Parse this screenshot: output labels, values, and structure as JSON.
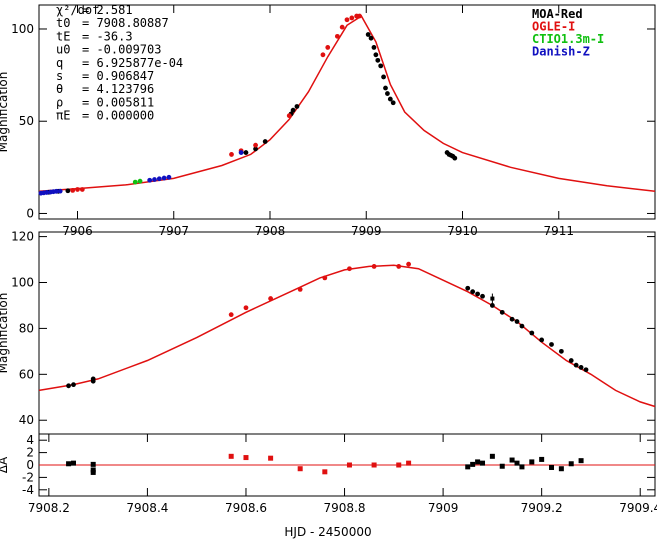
{
  "colors": {
    "model": "#e01010",
    "moa": "#000000",
    "ogle": "#e01010",
    "ctio": "#10c010",
    "danish": "#1010c0"
  },
  "params": [
    {
      "label": "χ²/dof",
      "value": "= 2.581"
    },
    {
      "label": "t0",
      "value": "= 7908.80887"
    },
    {
      "label": "tE",
      "value": "=   -36.3"
    },
    {
      "label": "u0",
      "value": "= -0.009703"
    },
    {
      "label": "q",
      "value": "= 6.925877e-04"
    },
    {
      "label": "s",
      "value": "= 0.906847"
    },
    {
      "label": "θ",
      "value": "= 4.123796"
    },
    {
      "label": "ρ",
      "value": "= 0.005811"
    },
    {
      "label": "πE",
      "value": "= 0.000000"
    }
  ],
  "legend": [
    {
      "label": "MOA-Red",
      "color": "#000000"
    },
    {
      "label": "OGLE-I",
      "color": "#e01010"
    },
    {
      "label": "CTIO1.3m-I",
      "color": "#10c010"
    },
    {
      "label": "Danish-Z",
      "color": "#1010c0"
    }
  ],
  "xlabel": "HJD - 2450000",
  "chart_data": [
    {
      "type": "scatter",
      "panel": "top",
      "ylabel": "Magnification",
      "xlim": [
        7905.6,
        7912.0
      ],
      "ylim": [
        -3,
        113
      ],
      "xticks": [
        7906,
        7907,
        7908,
        7909,
        7910,
        7911
      ],
      "yticks": [
        0,
        50,
        100
      ],
      "model": {
        "x": [
          7905.6,
          7906.0,
          7906.5,
          7907.0,
          7907.5,
          7907.8,
          7908.0,
          7908.2,
          7908.4,
          7908.6,
          7908.8,
          7908.95,
          7909.1,
          7909.25,
          7909.4,
          7909.6,
          7909.8,
          7910.0,
          7910.5,
          7911.0,
          7911.5,
          7912.0
        ],
        "y": [
          12,
          13.5,
          15.5,
          19,
          26,
          32,
          40,
          51,
          66,
          85,
          102,
          107,
          93,
          70,
          55,
          45,
          38,
          33,
          25,
          19,
          15,
          12
        ]
      },
      "series": [
        {
          "name": "MOA-Red",
          "x": [
            7905.7,
            7905.8,
            7905.9,
            7907.75,
            7907.85,
            7907.95,
            7908.22,
            7908.24,
            7908.28,
            7909.02,
            7909.05,
            7909.08,
            7909.1,
            7909.12,
            7909.15,
            7909.18,
            7909.2,
            7909.22,
            7909.25,
            7909.28,
            7909.84,
            7909.86,
            7909.88,
            7909.9,
            7909.92
          ],
          "y": [
            11.5,
            12,
            12.3,
            33,
            35,
            39,
            54,
            56,
            58,
            97,
            95,
            90,
            86,
            83,
            80,
            74,
            68,
            65,
            62,
            60,
            33,
            32,
            31.5,
            31,
            30
          ]
        },
        {
          "name": "OGLE-I",
          "x": [
            7905.95,
            7906.0,
            7906.05,
            7907.6,
            7907.7,
            7907.85,
            7908.2,
            7908.55,
            7908.6,
            7908.7,
            7908.75,
            7908.8,
            7908.85,
            7908.9,
            7908.93
          ],
          "y": [
            12.5,
            13,
            13,
            32,
            34,
            37,
            53,
            86,
            90,
            96,
            101,
            105,
            106,
            107,
            107
          ]
        },
        {
          "name": "CTIO1.3m-I",
          "x": [
            7906.6,
            7906.65
          ],
          "y": [
            17,
            17.5
          ]
        },
        {
          "name": "Danish-Z",
          "x": [
            7905.62,
            7905.65,
            7905.68,
            7905.72,
            7905.75,
            7905.78,
            7905.82,
            7906.75,
            7906.8,
            7906.85,
            7906.9,
            7906.95,
            7907.7
          ],
          "y": [
            11,
            11.2,
            11.4,
            11.6,
            11.8,
            12,
            12.1,
            18,
            18.4,
            18.8,
            19.2,
            19.6,
            33
          ]
        }
      ]
    },
    {
      "type": "scatter",
      "panel": "middle",
      "ylabel": "Magnification",
      "xlim": [
        7908.18,
        7909.43
      ],
      "ylim": [
        34,
        122
      ],
      "yticks": [
        40,
        60,
        80,
        100,
        120
      ],
      "model": {
        "x": [
          7908.18,
          7908.25,
          7908.3,
          7908.4,
          7908.5,
          7908.6,
          7908.7,
          7908.75,
          7908.8,
          7908.85,
          7908.9,
          7908.95,
          7909.0,
          7909.05,
          7909.1,
          7909.15,
          7909.2,
          7909.25,
          7909.3,
          7909.35,
          7909.4,
          7909.43
        ],
        "y": [
          53,
          55.5,
          58,
          66,
          76,
          87,
          97,
          102,
          105.5,
          107,
          107.5,
          106,
          101,
          96,
          90,
          83,
          74,
          66,
          60,
          53,
          48,
          46
        ]
      },
      "series": [
        {
          "name": "MOA-Red",
          "x": [
            7908.24,
            7908.25,
            7908.29,
            7908.29,
            7909.05,
            7909.06,
            7909.07,
            7909.08,
            7909.1,
            7909.12,
            7909.14,
            7909.15,
            7909.16,
            7909.18,
            7909.2,
            7909.22,
            7909.24,
            7909.26,
            7909.27,
            7909.28,
            7909.29
          ],
          "y": [
            55,
            55.5,
            57,
            58,
            97.5,
            96,
            95,
            94,
            90,
            87,
            84,
            83,
            81,
            78,
            75,
            73,
            70,
            66,
            64,
            63,
            62
          ]
        },
        {
          "name": "OGLE-I",
          "x": [
            7908.57,
            7908.6,
            7908.65,
            7908.71,
            7908.76,
            7908.81,
            7908.86,
            7908.91,
            7908.93
          ],
          "y": [
            86,
            89,
            93,
            97,
            102,
            106,
            107,
            107,
            108
          ]
        },
        {
          "name": "MOA-Red errbar",
          "x": [
            7909.1
          ],
          "y": [
            93
          ]
        }
      ]
    },
    {
      "type": "scatter",
      "panel": "bottom",
      "ylabel": "ΔA",
      "xlim": [
        7908.18,
        7909.43
      ],
      "ylim": [
        -5,
        5
      ],
      "yticks": [
        4,
        2,
        0,
        -2,
        -4
      ],
      "xticks": [
        7908.2,
        7908.4,
        7908.6,
        7908.8,
        7909,
        7909.2,
        7909.4
      ],
      "series": [
        {
          "name": "MOA-Red",
          "x": [
            7908.24,
            7908.25,
            7908.29,
            7908.29,
            7908.29,
            7909.05,
            7909.06,
            7909.07,
            7909.08,
            7909.1,
            7909.12,
            7909.14,
            7909.15,
            7909.16,
            7909.18,
            7909.2,
            7909.22,
            7909.24,
            7909.26,
            7909.28
          ],
          "y": [
            0.2,
            0.3,
            0.1,
            -0.8,
            -1.2,
            -0.3,
            0.1,
            0.5,
            0.3,
            1.4,
            -0.2,
            0.8,
            0.3,
            -0.3,
            0.5,
            0.9,
            -0.4,
            -0.6,
            0.2,
            0.7
          ]
        },
        {
          "name": "OGLE-I",
          "x": [
            7908.57,
            7908.6,
            7908.65,
            7908.71,
            7908.76,
            7908.81,
            7908.86,
            7908.91,
            7908.93
          ],
          "y": [
            1.4,
            1.2,
            1.1,
            -0.6,
            -1.1,
            0.0,
            0.0,
            0.0,
            0.3
          ]
        }
      ]
    }
  ]
}
